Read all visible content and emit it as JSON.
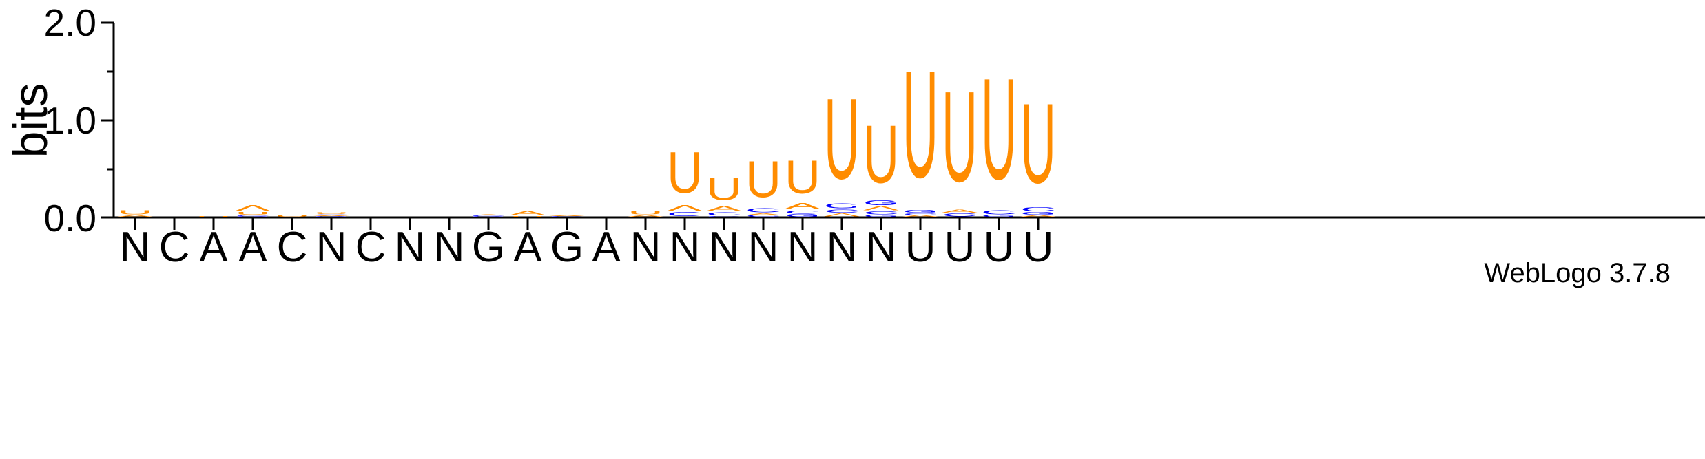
{
  "chart_data": {
    "type": "sequence-logo",
    "title": "",
    "xlabel": "",
    "ylabel": "bits",
    "ylim": [
      0,
      2.0
    ],
    "yticks": [
      "0.0",
      "1.0",
      "2.0"
    ],
    "grid": false,
    "credit": "WebLogo 3.7.8",
    "colors": {
      "U": "#ff8c00",
      "A": "#ff8c00",
      "C": "#0000ff",
      "G": "#0000ff"
    },
    "categories": [
      "N",
      "C",
      "A",
      "A",
      "C",
      "N",
      "C",
      "N",
      "N",
      "G",
      "A",
      "G",
      "A",
      "N",
      "N",
      "N",
      "N",
      "N",
      "N",
      "N",
      "U",
      "U",
      "U",
      "U"
    ],
    "positions": [
      {
        "consensus": "N",
        "stack": [
          [
            "A",
            0.02
          ],
          [
            "U",
            0.05
          ]
        ]
      },
      {
        "consensus": "C",
        "stack": []
      },
      {
        "consensus": "A",
        "stack": [
          [
            "U",
            0.01
          ]
        ]
      },
      {
        "consensus": "A",
        "stack": [
          [
            "G",
            0.01
          ],
          [
            "C",
            0.01
          ],
          [
            "U",
            0.03
          ],
          [
            "A",
            0.07
          ]
        ]
      },
      {
        "consensus": "C",
        "stack": [
          [
            "U",
            0.02
          ]
        ]
      },
      {
        "consensus": "N",
        "stack": [
          [
            "G",
            0.01
          ],
          [
            "A",
            0.01
          ],
          [
            "C",
            0.01
          ],
          [
            "U",
            0.02
          ]
        ]
      },
      {
        "consensus": "C",
        "stack": []
      },
      {
        "consensus": "N",
        "stack": []
      },
      {
        "consensus": "N",
        "stack": []
      },
      {
        "consensus": "G",
        "stack": [
          [
            "G",
            0.01
          ],
          [
            "C",
            0.01
          ],
          [
            "A",
            0.01
          ]
        ]
      },
      {
        "consensus": "A",
        "stack": [
          [
            "U",
            0.01
          ],
          [
            "A",
            0.05
          ]
        ]
      },
      {
        "consensus": "G",
        "stack": [
          [
            "C",
            0.01
          ],
          [
            "A",
            0.01
          ]
        ]
      },
      {
        "consensus": "A",
        "stack": []
      },
      {
        "consensus": "N",
        "stack": [
          [
            "A",
            0.02
          ],
          [
            "U",
            0.04
          ]
        ]
      },
      {
        "consensus": "N",
        "stack": [
          [
            "C",
            0.05
          ],
          [
            "A",
            0.07
          ],
          [
            "U",
            0.5
          ]
        ]
      },
      {
        "consensus": "N",
        "stack": [
          [
            "C",
            0.01
          ],
          [
            "C",
            0.04
          ],
          [
            "A",
            0.06
          ],
          [
            "U",
            0.27
          ]
        ]
      },
      {
        "consensus": "N",
        "stack": [
          [
            "C",
            0.02
          ],
          [
            "A",
            0.02
          ],
          [
            "C",
            0.05
          ],
          [
            "U",
            0.44
          ]
        ]
      },
      {
        "consensus": "N",
        "stack": [
          [
            "G",
            0.03
          ],
          [
            "C",
            0.04
          ],
          [
            "A",
            0.07
          ],
          [
            "U",
            0.4
          ]
        ]
      },
      {
        "consensus": "N",
        "stack": [
          [
            "A",
            0.04
          ],
          [
            "C",
            0.04
          ],
          [
            "G",
            0.06
          ],
          [
            "U",
            0.98
          ]
        ]
      },
      {
        "consensus": "N",
        "stack": [
          [
            "G",
            0.02
          ],
          [
            "C",
            0.04
          ],
          [
            "A",
            0.05
          ],
          [
            "G",
            0.06
          ],
          [
            "U",
            0.7
          ]
        ]
      },
      {
        "consensus": "U",
        "stack": [
          [
            "A",
            0.02
          ],
          [
            "C",
            0.02
          ],
          [
            "G",
            0.03
          ],
          [
            "U",
            1.3
          ]
        ]
      },
      {
        "consensus": "U",
        "stack": [
          [
            "C",
            0.04
          ],
          [
            "A",
            0.04
          ],
          [
            "U",
            1.1
          ]
        ]
      },
      {
        "consensus": "U",
        "stack": [
          [
            "G",
            0.02
          ],
          [
            "C",
            0.05
          ],
          [
            "U",
            1.23
          ]
        ]
      },
      {
        "consensus": "U",
        "stack": [
          [
            "A",
            0.02
          ],
          [
            "G",
            0.03
          ],
          [
            "C",
            0.05
          ],
          [
            "U",
            0.97
          ]
        ]
      }
    ]
  }
}
